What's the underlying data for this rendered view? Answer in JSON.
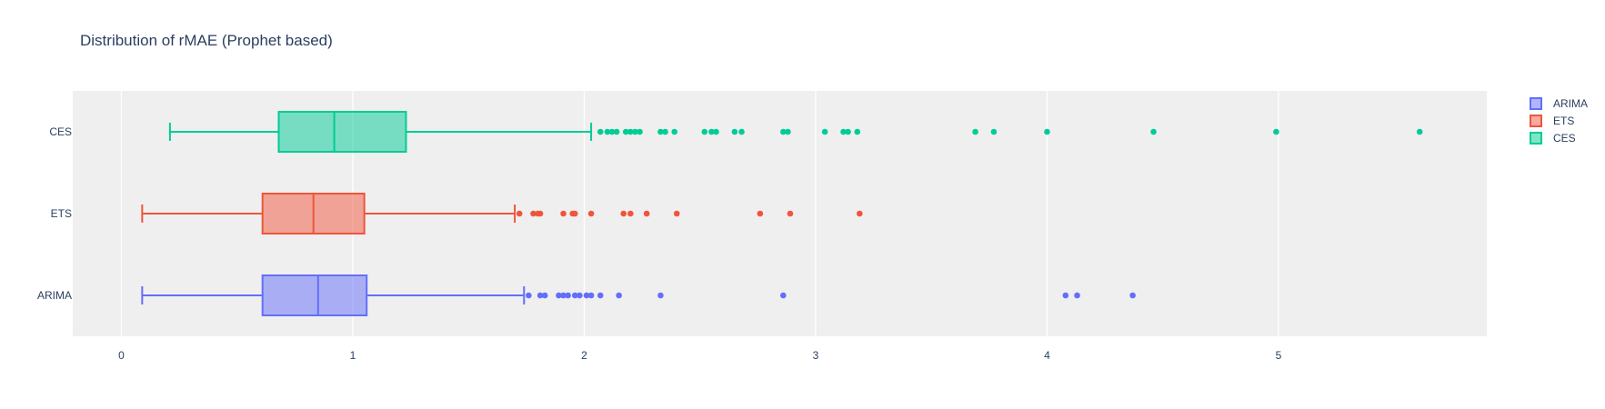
{
  "chart_data": {
    "type": "box",
    "title": "Distribution of rMAE (Prophet based)",
    "xlabel": "",
    "ylabel": "",
    "xlim": [
      -0.21,
      5.9
    ],
    "x_ticks": [
      0,
      1,
      2,
      3,
      4,
      5
    ],
    "grid": true,
    "legend_position": "top-right",
    "series": [
      {
        "name": "ARIMA",
        "color": "#636efa",
        "whisker_low": 0.09,
        "q1": 0.61,
        "median": 0.85,
        "q3": 1.06,
        "whisker_high": 1.74,
        "outliers": [
          1.76,
          1.81,
          1.83,
          1.89,
          1.91,
          1.93,
          1.96,
          1.98,
          2.01,
          2.03,
          2.07,
          2.15,
          2.33,
          2.86,
          4.08,
          4.13,
          4.37
        ]
      },
      {
        "name": "ETS",
        "color": "#ef553b",
        "whisker_low": 0.09,
        "q1": 0.61,
        "median": 0.83,
        "q3": 1.05,
        "whisker_high": 1.7,
        "outliers": [
          1.72,
          1.78,
          1.8,
          1.81,
          1.91,
          1.95,
          1.96,
          2.03,
          2.17,
          2.2,
          2.27,
          2.4,
          2.76,
          2.89,
          3.19
        ]
      },
      {
        "name": "CES",
        "color": "#00cc96",
        "whisker_low": 0.21,
        "q1": 0.68,
        "median": 0.92,
        "q3": 1.23,
        "whisker_high": 2.03,
        "outliers": [
          2.07,
          2.1,
          2.12,
          2.14,
          2.18,
          2.2,
          2.22,
          2.24,
          2.33,
          2.35,
          2.39,
          2.52,
          2.55,
          2.57,
          2.65,
          2.68,
          2.86,
          2.88,
          3.04,
          3.12,
          3.14,
          3.18,
          3.69,
          3.77,
          4.0,
          4.46,
          4.99,
          5.61
        ]
      }
    ]
  }
}
